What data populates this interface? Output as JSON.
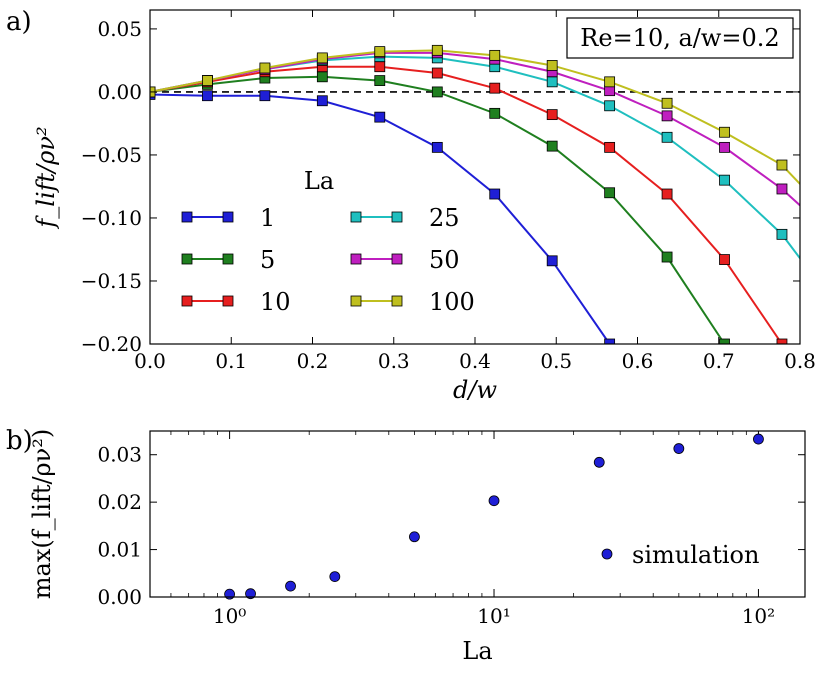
{
  "panel_a_label": "a)",
  "panel_b_label": "b)",
  "chart_data": [
    {
      "type": "line",
      "title": "",
      "annotation": "Re=10, a/w=0.2",
      "xlabel": "d/w",
      "ylabel": "f_lift/ρν²",
      "xlim": [
        0.0,
        0.8
      ],
      "ylim": [
        -0.2,
        0.065
      ],
      "xticks": [
        0.0,
        0.1,
        0.2,
        0.3,
        0.4,
        0.5,
        0.6,
        0.7,
        0.8
      ],
      "xtick_labels": [
        "0.0",
        "0.1",
        "0.2",
        "0.3",
        "0.4",
        "0.5",
        "0.6",
        "0.7",
        "0.8"
      ],
      "yticks": [
        -0.2,
        -0.15,
        -0.1,
        -0.05,
        0.0,
        0.05
      ],
      "ytick_labels": [
        "−0.20",
        "−0.15",
        "−0.10",
        "−0.05",
        "0.00",
        "0.05"
      ],
      "reference_line_y": 0.0,
      "legend_title": "La",
      "legend_placement": "lower-left",
      "x": [
        0.0,
        0.0707,
        0.1414,
        0.2121,
        0.2828,
        0.3536,
        0.4243,
        0.495,
        0.5657,
        0.6364,
        0.7071,
        0.7778
      ],
      "series": [
        {
          "name": "1",
          "color": "#1f1fd6",
          "values": [
            -0.002,
            -0.003,
            -0.003,
            -0.007,
            -0.02,
            -0.044,
            -0.081,
            -0.134,
            -0.2,
            null,
            null,
            null
          ],
          "extra": []
        },
        {
          "name": "5",
          "color": "#1f7f1f",
          "values": [
            0.0,
            0.006,
            0.011,
            0.012,
            0.009,
            0.0,
            -0.017,
            -0.043,
            -0.08,
            -0.131,
            -0.2,
            null
          ],
          "extra": []
        },
        {
          "name": "10",
          "color": "#e61f1f",
          "values": [
            0.0,
            0.008,
            0.016,
            0.02,
            0.02,
            0.015,
            0.003,
            -0.018,
            -0.044,
            -0.081,
            -0.133,
            -0.2
          ],
          "extra": []
        },
        {
          "name": "25",
          "color": "#1fbfbf",
          "values": [
            0.0,
            0.009,
            0.018,
            0.025,
            0.028,
            0.027,
            0.02,
            0.008,
            -0.011,
            -0.036,
            -0.07,
            -0.113
          ],
          "extra": [
            [
              0.8,
              -0.132
            ]
          ]
        },
        {
          "name": "50",
          "color": "#bf1fbf",
          "values": [
            0.0,
            0.009,
            0.018,
            0.026,
            0.031,
            0.031,
            0.026,
            0.016,
            0.001,
            -0.019,
            -0.044,
            -0.077
          ],
          "extra": [
            [
              0.8,
              -0.09
            ]
          ]
        },
        {
          "name": "100",
          "color": "#bfbf1f",
          "values": [
            0.0,
            0.009,
            0.019,
            0.027,
            0.032,
            0.033,
            0.029,
            0.021,
            0.008,
            -0.009,
            -0.032,
            -0.058
          ],
          "extra": [
            [
              0.8,
              -0.073
            ]
          ]
        }
      ]
    },
    {
      "type": "scatter",
      "title": "",
      "xlabel": "La",
      "ylabel": "max(f_lift/ρν²)",
      "xscale": "log",
      "xlim": [
        0.5,
        150
      ],
      "ylim": [
        0.0,
        0.035
      ],
      "xticks": [
        1,
        10,
        100
      ],
      "xtick_labels": [
        "10⁰",
        "10¹",
        "10²"
      ],
      "yticks": [
        0.0,
        0.01,
        0.02,
        0.03
      ],
      "ytick_labels": [
        "0.00",
        "0.01",
        "0.02",
        "0.03"
      ],
      "legend": "simulation",
      "legend_placement": "lower-right",
      "color": "#1f1fd6",
      "x": [
        1.0,
        1.2,
        1.7,
        2.5,
        5.0,
        10.0,
        25.0,
        50.0,
        100.0
      ],
      "y": [
        0.0006,
        0.0007,
        0.0023,
        0.0043,
        0.0127,
        0.0203,
        0.0284,
        0.0313,
        0.0333
      ]
    }
  ]
}
